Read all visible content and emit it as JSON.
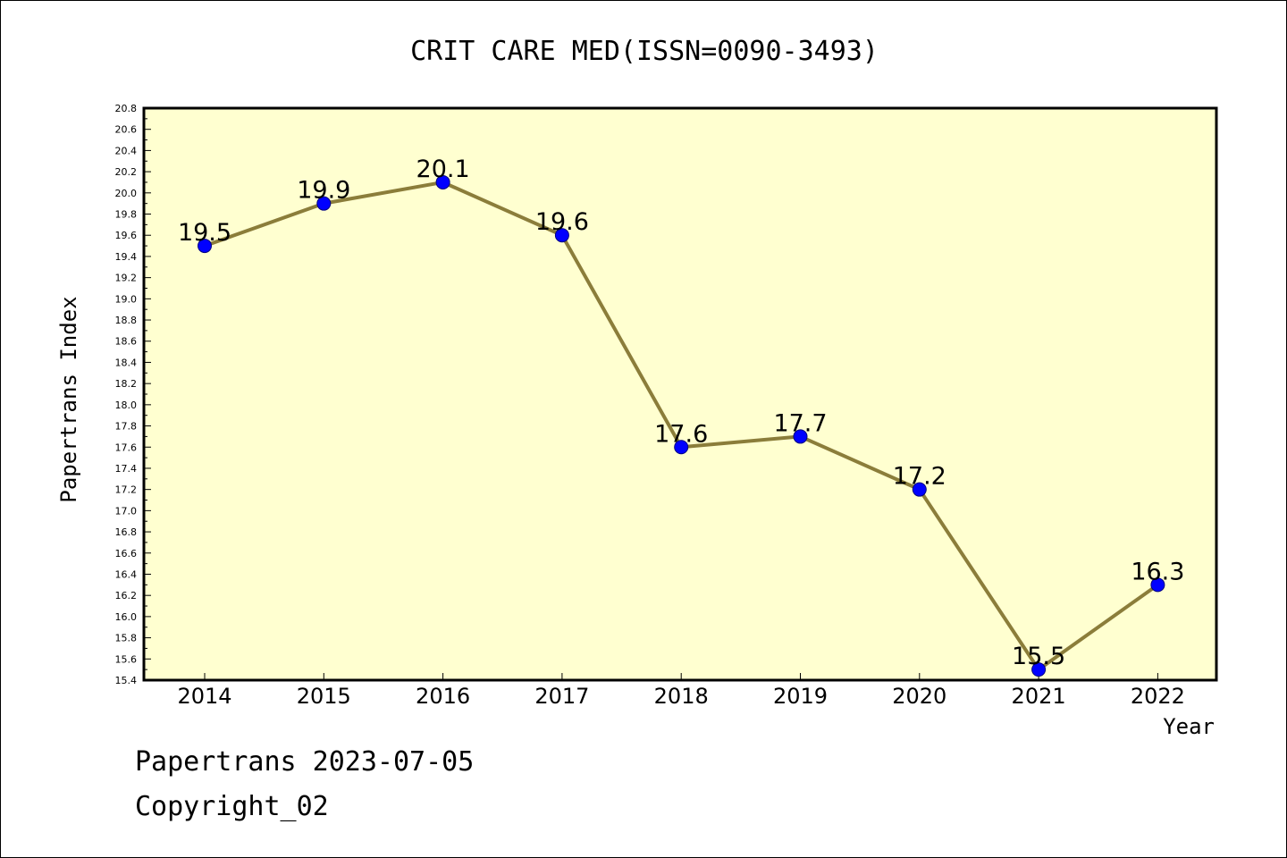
{
  "chart_data": {
    "type": "line",
    "title": "CRIT CARE MED(ISSN=0090-3493)",
    "xlabel": "Year",
    "ylabel": "Papertrans Index",
    "categories": [
      "2014",
      "2015",
      "2016",
      "2017",
      "2018",
      "2019",
      "2020",
      "2021",
      "2022"
    ],
    "series": [
      {
        "values": [
          19.5,
          19.9,
          20.1,
          19.6,
          17.6,
          17.7,
          17.2,
          15.5,
          16.3
        ],
        "data_labels": [
          "19.5",
          "19.9",
          "20.1",
          "19.6",
          "17.6",
          "17.7",
          "17.2",
          "15.5",
          "16.3"
        ]
      }
    ],
    "ylim": [
      15.4,
      20.8
    ],
    "ytick_labels": [
      "15.4",
      "15.6",
      "15.8",
      "16.0",
      "16.2",
      "16.4",
      "16.6",
      "16.8",
      "17.0",
      "17.2",
      "17.4",
      "17.6",
      "17.8",
      "18.0",
      "18.2",
      "18.4",
      "18.6",
      "18.8",
      "19.0",
      "19.2",
      "19.4",
      "19.6",
      "19.8",
      "20.0",
      "20.2",
      "20.4",
      "20.6",
      "20.8"
    ],
    "grid": false,
    "colors": {
      "plot_background": "#ffffd0",
      "line": "#8b7d3a",
      "marker_fill": "#0000ff",
      "marker_edge": "#000080"
    }
  },
  "footer": {
    "line1": "Papertrans 2023-07-05",
    "line2": "Copyright_02"
  }
}
